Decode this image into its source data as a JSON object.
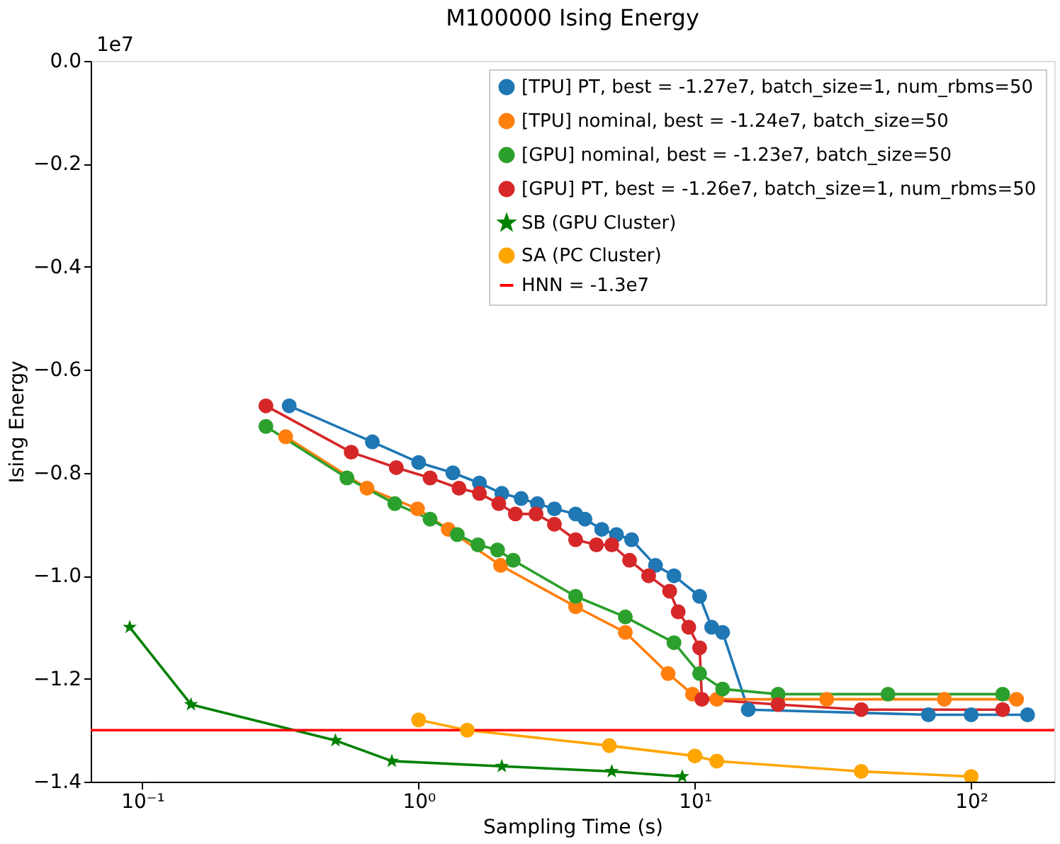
{
  "chart_data": {
    "type": "line",
    "title": "M100000 Ising Energy",
    "xlabel": "Sampling Time (s)",
    "ylabel": "Ising Energy",
    "annotations": [
      "1e7"
    ],
    "log": "x",
    "grid": false,
    "legend": "top right",
    "line_style": "solid",
    "xlim": [
      0.065,
      200
    ],
    "xticks": [
      {
        "value": 0.1,
        "label": "10⁻¹"
      },
      {
        "value": 1,
        "label": "10⁰"
      },
      {
        "value": 10,
        "label": "10¹"
      },
      {
        "value": 100,
        "label": "10²"
      }
    ],
    "ylim": [
      -1.4,
      0
    ],
    "yticks": [
      {
        "value": 0,
        "label": "0.0"
      },
      {
        "value": -0.2,
        "label": "−0.2"
      },
      {
        "value": -0.4,
        "label": "−0.4"
      },
      {
        "value": -0.6,
        "label": "−0.6"
      },
      {
        "value": -0.8,
        "label": "−0.8"
      },
      {
        "value": -1.0,
        "label": "−1.0"
      },
      {
        "value": -1.2,
        "label": "−1.2"
      },
      {
        "value": -1.4,
        "label": "−1.4"
      }
    ],
    "series": [
      {
        "name": "[TPU] PT, best = -1.27e7, batch_size=1, num_rbms=50",
        "color": "#1f77b4",
        "marker": "circle",
        "x": [
          0.34,
          0.68,
          1.0,
          1.33,
          1.66,
          2.0,
          2.35,
          2.69,
          3.1,
          3.7,
          4.0,
          4.6,
          5.2,
          5.9,
          7.2,
          8.4,
          10.4,
          11.5,
          12.6,
          15.6,
          70,
          100,
          160
        ],
        "values": [
          -0.67,
          -0.74,
          -0.78,
          -0.8,
          -0.82,
          -0.84,
          -0.85,
          -0.86,
          -0.87,
          -0.88,
          -0.89,
          -0.91,
          -0.92,
          -0.93,
          -0.98,
          -1.0,
          -1.04,
          -1.1,
          -1.11,
          -1.26,
          -1.27,
          -1.27,
          -1.27
        ]
      },
      {
        "name": "[TPU] nominal, best = -1.24e7, batch_size=50",
        "color": "#ff7f0e",
        "marker": "circle",
        "x": [
          0.33,
          0.65,
          0.99,
          1.28,
          1.98,
          3.7,
          5.6,
          8.0,
          9.8,
          12,
          30,
          80,
          146
        ],
        "values": [
          -0.73,
          -0.83,
          -0.87,
          -0.91,
          -0.98,
          -1.06,
          -1.11,
          -1.19,
          -1.23,
          -1.24,
          -1.24,
          -1.24,
          -1.24
        ]
      },
      {
        "name": "[GPU] nominal, best = -1.23e7, batch_size=50",
        "color": "#2ca02c",
        "marker": "circle",
        "x": [
          0.28,
          0.55,
          0.82,
          1.1,
          1.38,
          1.64,
          1.93,
          2.2,
          3.7,
          5.6,
          8.4,
          10.4,
          12.6,
          20,
          50,
          130
        ],
        "values": [
          -0.71,
          -0.81,
          -0.86,
          -0.89,
          -0.92,
          -0.94,
          -0.95,
          -0.97,
          -1.04,
          -1.08,
          -1.13,
          -1.19,
          -1.22,
          -1.23,
          -1.23,
          -1.23
        ]
      },
      {
        "name": "[GPU] PT, best = -1.26e7, batch_size=1, num_rbms=50",
        "color": "#d62728",
        "marker": "circle",
        "x": [
          0.28,
          0.57,
          0.83,
          1.1,
          1.4,
          1.66,
          1.95,
          2.24,
          2.66,
          3.1,
          3.7,
          4.4,
          5.0,
          5.8,
          6.8,
          8.1,
          8.7,
          9.5,
          10.4,
          10.6,
          20,
          40,
          130
        ],
        "values": [
          -0.67,
          -0.76,
          -0.79,
          -0.81,
          -0.83,
          -0.84,
          -0.86,
          -0.88,
          -0.88,
          -0.9,
          -0.93,
          -0.94,
          -0.94,
          -0.97,
          -1.0,
          -1.03,
          -1.07,
          -1.1,
          -1.14,
          -1.24,
          -1.25,
          -1.26,
          -1.26
        ]
      },
      {
        "name": "SB (GPU Cluster)",
        "color": "#008000",
        "marker": "star",
        "x": [
          0.09,
          0.15,
          0.5,
          0.8,
          2,
          5,
          9
        ],
        "values": [
          -1.1,
          -1.25,
          -1.32,
          -1.36,
          -1.37,
          -1.38,
          -1.39
        ]
      },
      {
        "name": "SA (PC Cluster)",
        "color": "#ffa500",
        "marker": "circle",
        "x": [
          1,
          1.5,
          4.9,
          10,
          12,
          40,
          100
        ],
        "values": [
          -1.28,
          -1.3,
          -1.33,
          -1.35,
          -1.36,
          -1.38,
          -1.39
        ]
      }
    ],
    "ref_lines": [
      {
        "axis": "y",
        "value": -1.3,
        "label": "HNN = -1.3e7",
        "color": "#ff0000",
        "line_style": "solid"
      }
    ]
  }
}
